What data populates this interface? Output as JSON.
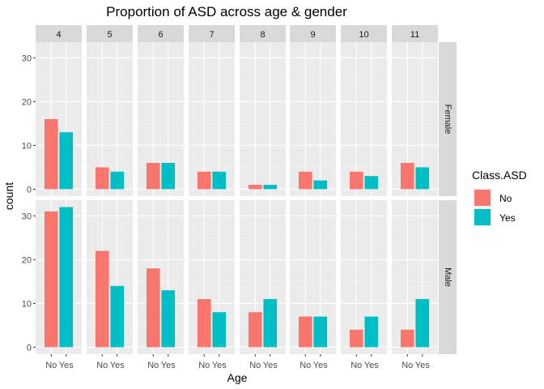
{
  "chart_data": {
    "type": "bar",
    "title": "Proportion of ASD across age & gender",
    "xlabel": "Age",
    "ylabel": "count",
    "ylim": [
      0,
      32
    ],
    "yticks": [
      0,
      10,
      20,
      30
    ],
    "categories": [
      "No",
      "Yes"
    ],
    "facet_columns": [
      "4",
      "5",
      "6",
      "7",
      "8",
      "9",
      "10",
      "11"
    ],
    "facet_rows": [
      "Female",
      "Male"
    ],
    "legend": {
      "title": "Class.ASD",
      "position": "right",
      "items": [
        {
          "label": "No",
          "color": "#F8766D"
        },
        {
          "label": "Yes",
          "color": "#00BFC4"
        }
      ]
    },
    "grid": true,
    "series": [
      {
        "name": "No",
        "color": "#F8766D",
        "values": {
          "Female": [
            16,
            5,
            6,
            4,
            1,
            4,
            4,
            6
          ],
          "Male": [
            31,
            22,
            18,
            11,
            8,
            7,
            4,
            4
          ]
        }
      },
      {
        "name": "Yes",
        "color": "#00BFC4",
        "values": {
          "Female": [
            13,
            4,
            6,
            4,
            1,
            2,
            3,
            5
          ],
          "Male": [
            32,
            14,
            13,
            8,
            11,
            7,
            7,
            11
          ]
        }
      }
    ]
  }
}
